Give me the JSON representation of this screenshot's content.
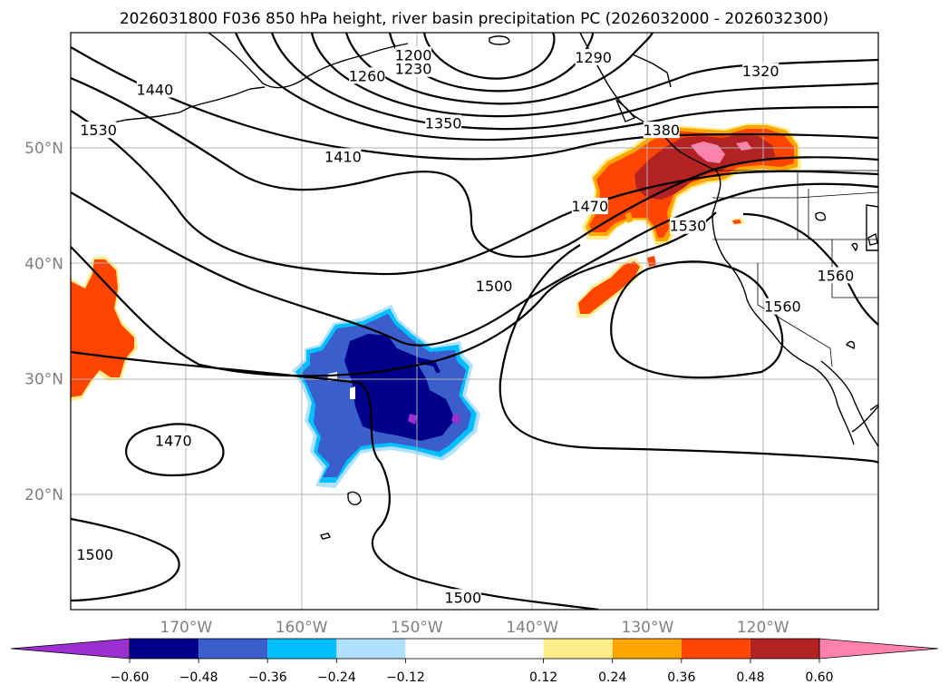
{
  "title": "2026031800 F036 850 hPa height, river basin precipitation PC (2026032000 - 2026032300)",
  "map": {
    "projection": "PlateCarree",
    "lon_range": [
      -180,
      -110
    ],
    "lat_range": [
      10,
      60
    ],
    "gridlines": true,
    "lon_ticks": [
      {
        "lon": -170,
        "label": "170°W"
      },
      {
        "lon": -160,
        "label": "160°W"
      },
      {
        "lon": -150,
        "label": "150°W"
      },
      {
        "lon": -140,
        "label": "140°W"
      },
      {
        "lon": -130,
        "label": "130°W"
      },
      {
        "lon": -120,
        "label": "120°W"
      }
    ],
    "lat_ticks": [
      {
        "lat": 50,
        "label": "50°N"
      },
      {
        "lat": 40,
        "label": "40°N"
      },
      {
        "lat": 30,
        "label": "30°N"
      },
      {
        "lat": 20,
        "label": "20°N"
      }
    ]
  },
  "height_contour_labels": [
    {
      "text": "1200",
      "lon": -150.3,
      "lat": 58.0
    },
    {
      "text": "1230",
      "lon": -150.3,
      "lat": 56.8
    },
    {
      "text": "1260",
      "lon": -154.3,
      "lat": 56.2
    },
    {
      "text": "1290",
      "lon": -134.7,
      "lat": 57.8
    },
    {
      "text": "1320",
      "lon": -120.2,
      "lat": 56.6
    },
    {
      "text": "1350",
      "lon": -147.7,
      "lat": 52.1
    },
    {
      "text": "1380",
      "lon": -128.8,
      "lat": 51.5
    },
    {
      "text": "1410",
      "lon": -156.4,
      "lat": 49.2
    },
    {
      "text": "1440",
      "lon": -172.7,
      "lat": 55.0
    },
    {
      "text": "1470",
      "lon": -135.0,
      "lat": 44.9
    },
    {
      "text": "1470",
      "lon": -171.1,
      "lat": 24.6
    },
    {
      "text": "1500",
      "lon": -143.3,
      "lat": 38.0
    },
    {
      "text": "1500",
      "lon": -177.9,
      "lat": 14.7
    },
    {
      "text": "1500",
      "lon": -146.0,
      "lat": 11.0
    },
    {
      "text": "1530",
      "lon": -177.6,
      "lat": 51.5
    },
    {
      "text": "1530",
      "lon": -126.5,
      "lat": 43.2
    },
    {
      "text": "1560",
      "lon": -118.3,
      "lat": 36.2
    },
    {
      "text": "1560",
      "lon": -113.7,
      "lat": 38.9
    }
  ],
  "precip_pc_regions": [
    {
      "name": "negative-anomaly-subtropical-pacific",
      "sign": "negative",
      "center_lon": -151,
      "center_lat": 29,
      "min_level": -0.6
    },
    {
      "name": "positive-anomaly-pacific-northwest",
      "sign": "positive",
      "center_lon": -128,
      "center_lat": 48,
      "max_level": 0.6
    },
    {
      "name": "positive-anomaly-dateline",
      "sign": "positive",
      "center_lon": -178,
      "center_lat": 35,
      "max_level": 0.36
    }
  ],
  "colorbar": {
    "levels": [
      -0.72,
      -0.6,
      -0.48,
      -0.36,
      -0.24,
      -0.12,
      0.12,
      0.24,
      0.36,
      0.48,
      0.6,
      0.72
    ],
    "colors": [
      "#9b2fd0",
      "#00008b",
      "#3a5fcd",
      "#00bfff",
      "#b0e2ff",
      "#ffffff",
      "#ffec8b",
      "#ffa500",
      "#ff4500",
      "#b22222",
      "#ff82ab"
    ],
    "extend": "both",
    "under_color": "#9b2fd0",
    "over_color": "#ff82ab",
    "tick_labels": [
      "−0.60",
      "−0.48",
      "−0.36",
      "−0.24",
      "−0.12",
      "0.12",
      "0.24",
      "0.36",
      "0.48",
      "0.60"
    ]
  }
}
